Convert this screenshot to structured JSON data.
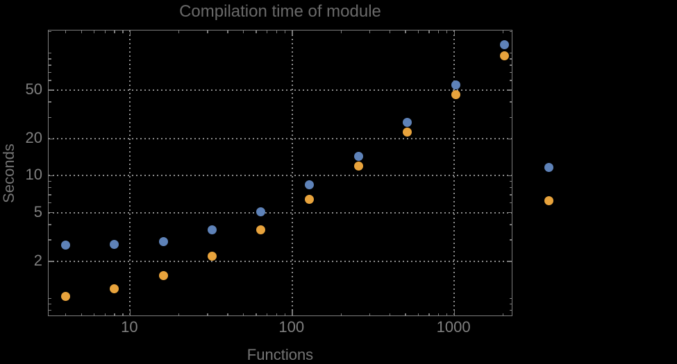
{
  "chart_data": {
    "type": "scatter",
    "title": "Compilation time of module",
    "xlabel": "Functions",
    "ylabel": "Seconds",
    "xscale": "log",
    "yscale": "log",
    "xlim": [
      3.14,
      2310
    ],
    "ylim": [
      0.705,
      153
    ],
    "grid": "dotted gridlines at labeled major ticks only",
    "legend_position": "outside right, markers only (no visible label text)",
    "x": [
      4,
      8,
      16,
      32,
      64,
      128,
      256,
      512,
      1024,
      2048
    ],
    "series": [
      {
        "name": "blue",
        "color": "#5E82B8",
        "values": [
          2.71,
          2.74,
          2.9,
          3.6,
          5.1,
          8.4,
          14.4,
          27.4,
          55,
          117
        ]
      },
      {
        "name": "orange",
        "color": "#E8A33C",
        "values": [
          1.03,
          1.19,
          1.53,
          2.2,
          3.6,
          6.4,
          12,
          22.7,
          46,
          95
        ]
      }
    ],
    "x_major_ticks": {
      "values": [
        10,
        100,
        1000
      ],
      "labels": [
        "10",
        "100",
        "1000"
      ]
    },
    "y_major_ticks": {
      "values": [
        2,
        5,
        10,
        20,
        50
      ],
      "labels": [
        "2",
        "5",
        "10",
        "20",
        "50"
      ]
    },
    "x_minor_ticks": [
      4,
      5,
      6,
      7,
      8,
      9,
      20,
      30,
      40,
      50,
      60,
      70,
      80,
      90,
      200,
      300,
      400,
      500,
      600,
      700,
      800,
      900,
      2000
    ],
    "y_minor_ticks": [
      0.8,
      0.9,
      1,
      3,
      4,
      6,
      7,
      8,
      9,
      30,
      40,
      60,
      70,
      80,
      90,
      100,
      150
    ]
  },
  "colors": {
    "background": "#000000",
    "frame": "#7d7d7d",
    "grid": "#8e8e8e",
    "tick_label": "#808080",
    "axis_label": "#757575",
    "title": "#6a6a6a",
    "series_blue": "#5E82B8",
    "series_orange": "#E8A33C"
  }
}
